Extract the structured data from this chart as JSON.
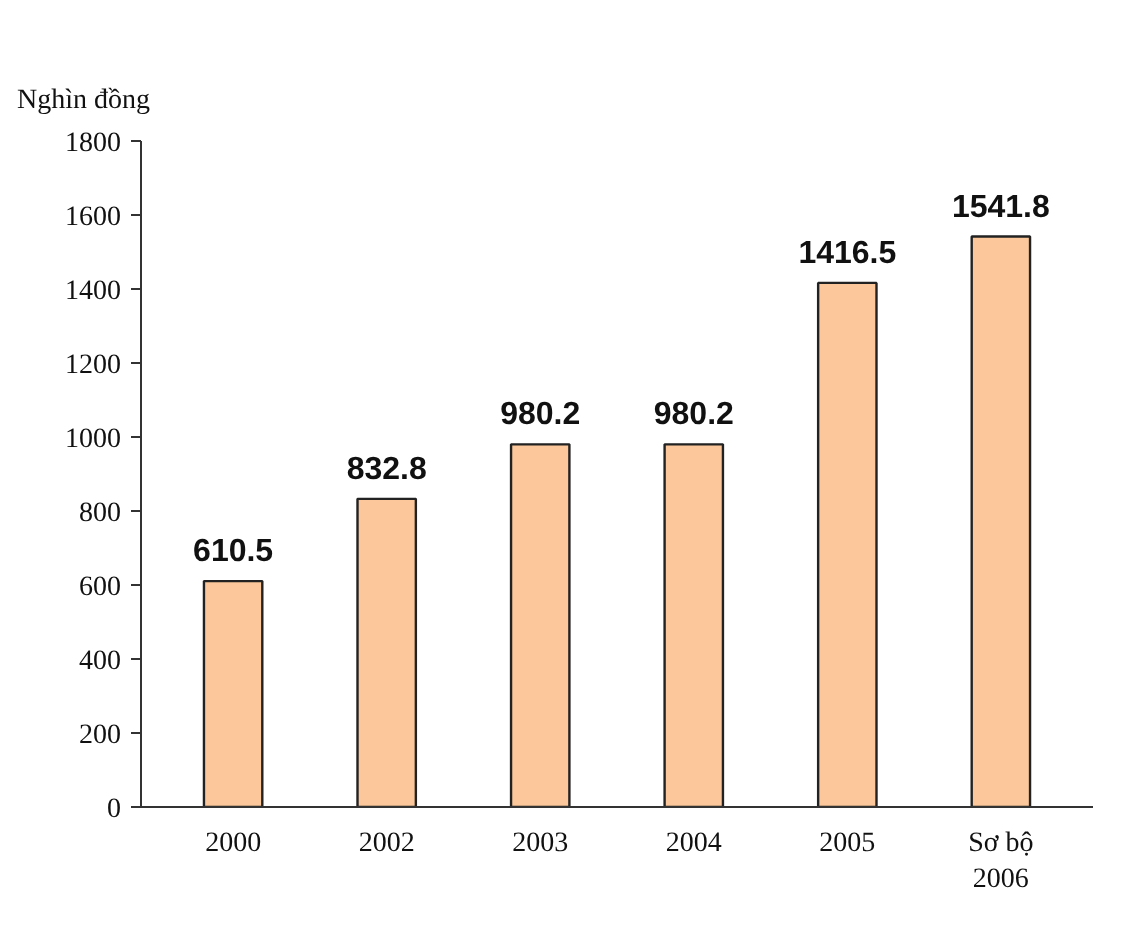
{
  "chart_data": {
    "type": "bar",
    "ylabel": "Nghìn đồng",
    "categories": [
      "2000",
      "2002",
      "2003",
      "2004",
      "2005",
      "Sơ bộ\n2006"
    ],
    "values": [
      610.5,
      832.8,
      980.2,
      980.2,
      1416.5,
      1541.8
    ],
    "color": "#fcc89b",
    "ylim": [
      0,
      1800
    ],
    "yticks": [
      0,
      200,
      400,
      600,
      800,
      1000,
      1200,
      1400,
      1600,
      1800
    ],
    "grid": false,
    "data_labels": true
  }
}
